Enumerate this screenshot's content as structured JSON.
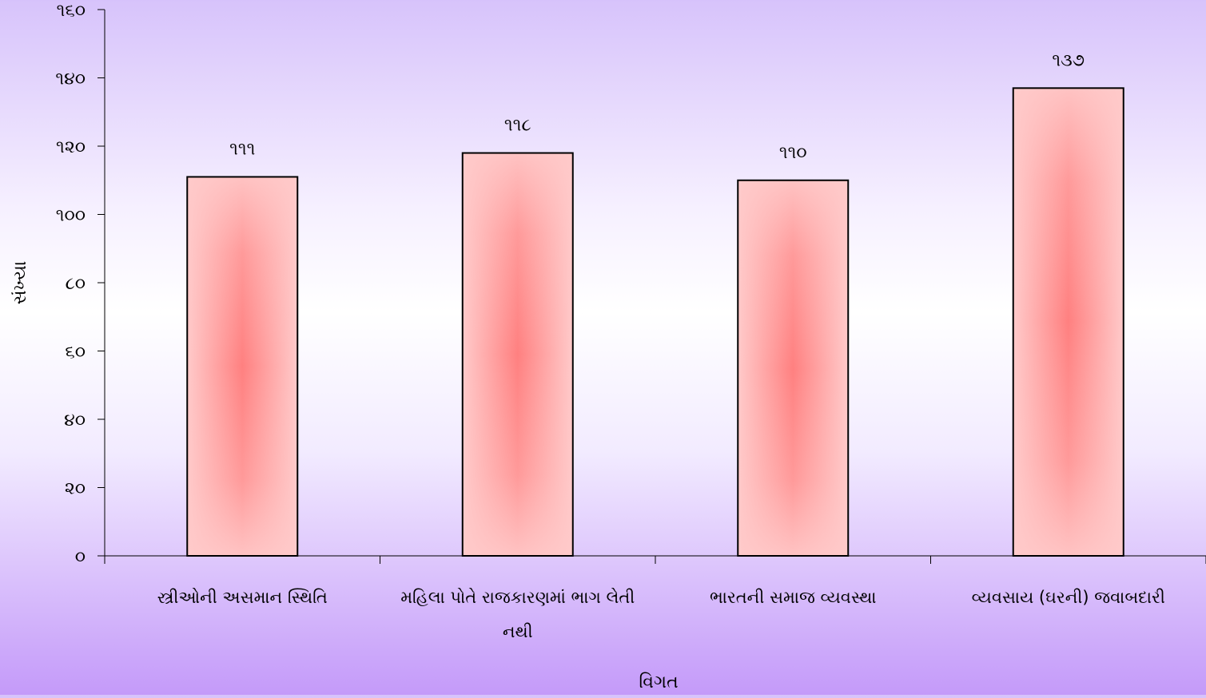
{
  "chart_data": {
    "type": "bar",
    "categories": [
      [
        "સ્ત્રીઓની અસમાન સ્થિતિ"
      ],
      [
        "મહિલા પોતે રાજકારણમાં ભાગ લેતી",
        "નથી"
      ],
      [
        "ભારતની સમાજ વ્યવસ્થા"
      ],
      [
        "વ્યવસાય (ઘરની) જવાબદારી"
      ]
    ],
    "values": [
      111,
      118,
      110,
      137
    ],
    "value_labels": [
      "૧૧૧",
      "૧૧૮",
      "૧૧૦",
      "૧૩૭"
    ],
    "xlabel": "વિગત",
    "ylabel": "સંખ્યા",
    "ylim": [
      0,
      160
    ],
    "yticks": [
      0,
      20,
      40,
      60,
      80,
      100,
      120,
      140,
      160
    ],
    "ytick_labels": [
      "૦",
      "૨૦",
      "૪૦",
      "૬૦",
      "૮૦",
      "૧૦૦",
      "૧૨૦",
      "૧૪૦",
      "૧૬૦"
    ],
    "grid": false,
    "legend": "none",
    "colors": {
      "bar_center": "#ff8080",
      "bar_edge": "#ffcaca",
      "bar_stroke": "#000000",
      "axis": "#000000"
    }
  }
}
